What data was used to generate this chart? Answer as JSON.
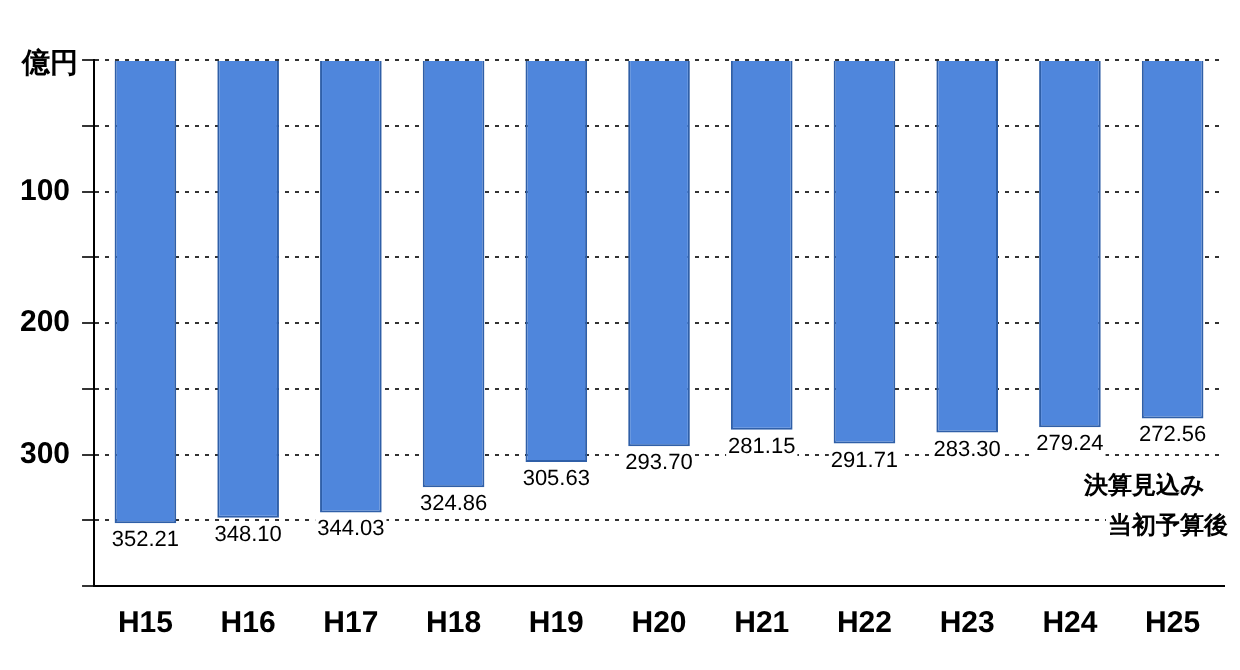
{
  "chart_data": {
    "type": "bar",
    "ylabel": "億円",
    "categories": [
      "H15",
      "H16",
      "H17",
      "H18",
      "H19",
      "H20",
      "H21",
      "H22",
      "H23",
      "H24",
      "H25"
    ],
    "values": [
      352.21,
      348.1,
      344.03,
      324.86,
      305.63,
      293.7,
      281.15,
      291.71,
      283.3,
      279.24,
      272.56
    ],
    "value_labels": [
      "352.21",
      "348.10",
      "344.03",
      "324.86",
      "305.63",
      "293.70",
      "281.15",
      "291.71",
      "283.30",
      "279.24",
      "272.56"
    ],
    "color": "#4f86dc",
    "ylim": [
      400,
      0
    ],
    "yticks": [
      {
        "value": 0,
        "label": null
      },
      {
        "value": 50,
        "label": null
      },
      100,
      {
        "value": 150,
        "label": null
      },
      200,
      {
        "value": 250,
        "label": null
      },
      300,
      {
        "value": 350,
        "label": null
      },
      {
        "value": 400,
        "label": null
      }
    ],
    "grid": "y",
    "annotations": [
      "決算見込み",
      "当初予算後"
    ]
  }
}
